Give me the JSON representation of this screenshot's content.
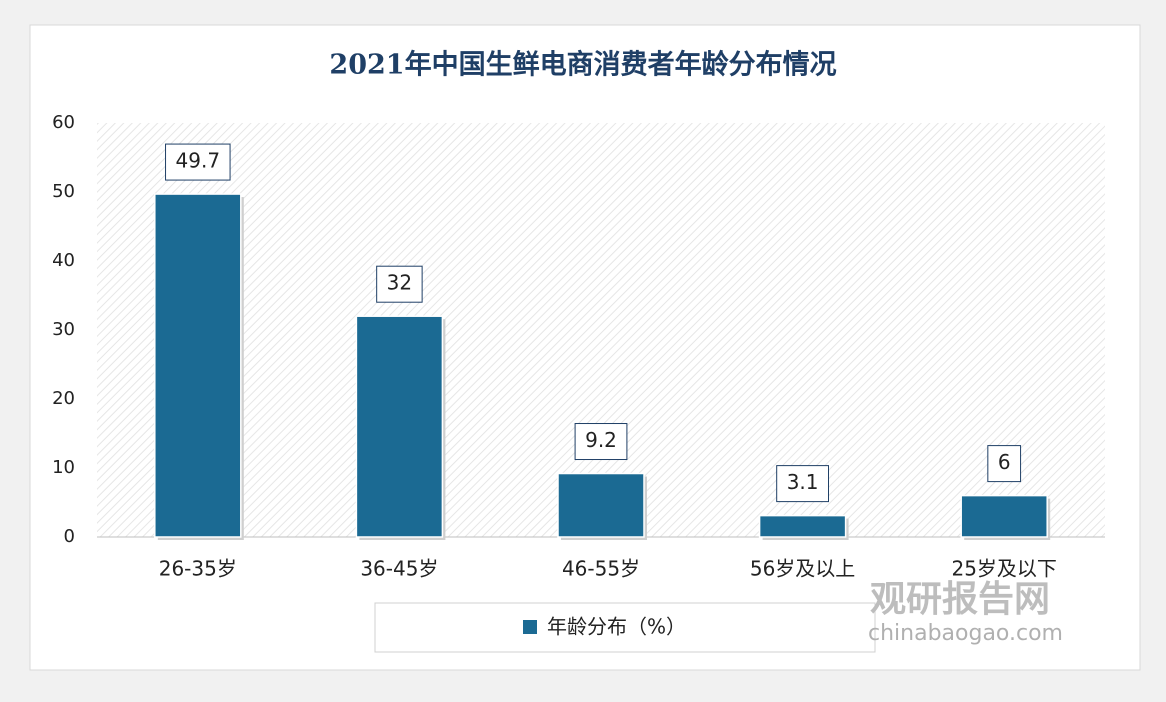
{
  "chart_data": {
    "type": "bar",
    "title": "2021年中国生鲜电商消费者年龄分布情况",
    "categories": [
      "26-35岁",
      "36-45岁",
      "46-55岁",
      "56岁及以上",
      "25岁及以下"
    ],
    "series": [
      {
        "name": "年龄分布（%）",
        "color": "#1b6a93",
        "values": [
          49.7,
          32,
          9.2,
          3.1,
          6
        ]
      }
    ],
    "ylim": [
      0,
      60
    ],
    "yticks": [
      0,
      10,
      20,
      30,
      40,
      50,
      60
    ],
    "grid": false,
    "legend": "bottom"
  },
  "watermark": {
    "name": "观研报告网",
    "site": "chinabaogao.com"
  }
}
